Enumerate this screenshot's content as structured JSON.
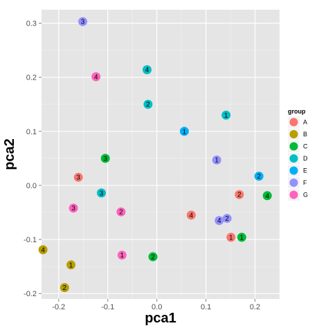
{
  "chart_data": {
    "type": "scatter",
    "title": "",
    "xlabel": "pca1",
    "ylabel": "pca2",
    "xlim": [
      -0.235,
      0.25
    ],
    "ylim": [
      -0.21,
      0.325
    ],
    "x_ticks": [
      -0.2,
      -0.1,
      0.0,
      0.1,
      0.2
    ],
    "x_tick_labels": [
      "-0.2",
      "-0.1",
      "0.0",
      "0.1",
      "0.2"
    ],
    "y_ticks": [
      -0.2,
      -0.1,
      0.0,
      0.1,
      0.2,
      0.3
    ],
    "y_tick_labels": [
      "-0.2",
      "-0.1",
      "0.0",
      "0.1",
      "0.2",
      "0.3"
    ],
    "grid": true,
    "legend": {
      "title": "group",
      "position": "right"
    },
    "series": [
      {
        "name": "A",
        "color": "#F8766D",
        "points": [
          {
            "x": 0.168,
            "y": -0.017,
            "label": "2"
          },
          {
            "x": 0.07,
            "y": -0.055,
            "label": "4"
          },
          {
            "x": 0.151,
            "y": -0.096,
            "label": "1"
          },
          {
            "x": -0.16,
            "y": 0.015,
            "label": "3"
          }
        ]
      },
      {
        "name": "B",
        "color": "#B79F00",
        "points": [
          {
            "x": -0.232,
            "y": -0.119,
            "label": "4"
          },
          {
            "x": -0.175,
            "y": -0.147,
            "label": "1"
          },
          {
            "x": -0.188,
            "y": -0.189,
            "label": "2"
          }
        ]
      },
      {
        "name": "C",
        "color": "#00BA38",
        "points": [
          {
            "x": -0.105,
            "y": 0.05,
            "label": "3"
          },
          {
            "x": -0.008,
            "y": -0.132,
            "label": "2"
          },
          {
            "x": 0.173,
            "y": -0.096,
            "label": "1"
          },
          {
            "x": 0.225,
            "y": -0.019,
            "label": "4"
          }
        ]
      },
      {
        "name": "D",
        "color": "#00BFC4",
        "points": [
          {
            "x": -0.02,
            "y": 0.214,
            "label": "4"
          },
          {
            "x": -0.018,
            "y": 0.15,
            "label": "2"
          },
          {
            "x": 0.141,
            "y": 0.13,
            "label": "1"
          },
          {
            "x": -0.113,
            "y": -0.014,
            "label": "3"
          }
        ]
      },
      {
        "name": "E",
        "color": "#00B0F6",
        "points": [
          {
            "x": 0.056,
            "y": 0.1,
            "label": "1"
          },
          {
            "x": 0.208,
            "y": 0.017,
            "label": "2"
          }
        ]
      },
      {
        "name": "F",
        "color": "#9590FF",
        "points": [
          {
            "x": -0.151,
            "y": 0.303,
            "label": "3"
          },
          {
            "x": 0.122,
            "y": 0.047,
            "label": "1"
          },
          {
            "x": 0.143,
            "y": -0.061,
            "label": "2"
          },
          {
            "x": 0.127,
            "y": -0.065,
            "label": "4"
          }
        ]
      },
      {
        "name": "G",
        "color": "#FF62BC",
        "points": [
          {
            "x": -0.124,
            "y": 0.201,
            "label": "4"
          },
          {
            "x": -0.17,
            "y": -0.042,
            "label": "3"
          },
          {
            "x": -0.073,
            "y": -0.049,
            "label": "2"
          },
          {
            "x": -0.071,
            "y": -0.129,
            "label": "1"
          }
        ]
      }
    ]
  }
}
